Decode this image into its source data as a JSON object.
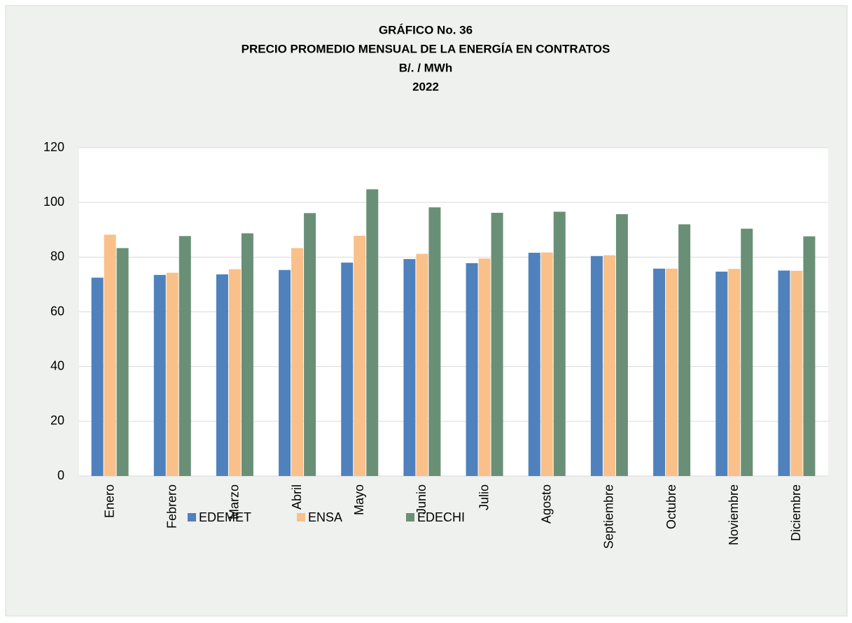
{
  "chart_data": {
    "type": "bar",
    "title": [
      "GRÁFICO  No.  36",
      "PRECIO PROMEDIO MENSUAL  DE LA ENERGÍA  EN CONTRATOS",
      "B/.  /  MWh",
      "2022"
    ],
    "categories": [
      "Enero",
      "Febrero",
      "Marzo",
      "Abril",
      "Mayo",
      "Junio",
      "Julio",
      "Agosto",
      "Septiembre",
      "Octubre",
      "Noviembre",
      "Diciembre"
    ],
    "series": [
      {
        "name": "EDEMET",
        "color": "#4f81bd",
        "values": [
          72.5,
          73.5,
          73.7,
          75.3,
          78.0,
          79.3,
          77.8,
          81.6,
          80.4,
          75.8,
          74.7,
          75.1
        ]
      },
      {
        "name": "ENSA",
        "color": "#f9c08a",
        "values": [
          88.2,
          74.3,
          75.6,
          83.3,
          87.8,
          81.2,
          79.5,
          81.7,
          80.7,
          75.8,
          75.7,
          75.0
        ]
      },
      {
        "name": "EDECHI",
        "color": "#6a8f77",
        "values": [
          83.3,
          87.7,
          88.7,
          96.1,
          104.8,
          98.2,
          96.2,
          96.6,
          95.7,
          92.0,
          90.4,
          87.6
        ]
      }
    ],
    "ylim": [
      0,
      120
    ],
    "yticks": [
      0,
      20,
      40,
      60,
      80,
      100,
      120
    ],
    "grid": true,
    "legend": "bottom"
  }
}
